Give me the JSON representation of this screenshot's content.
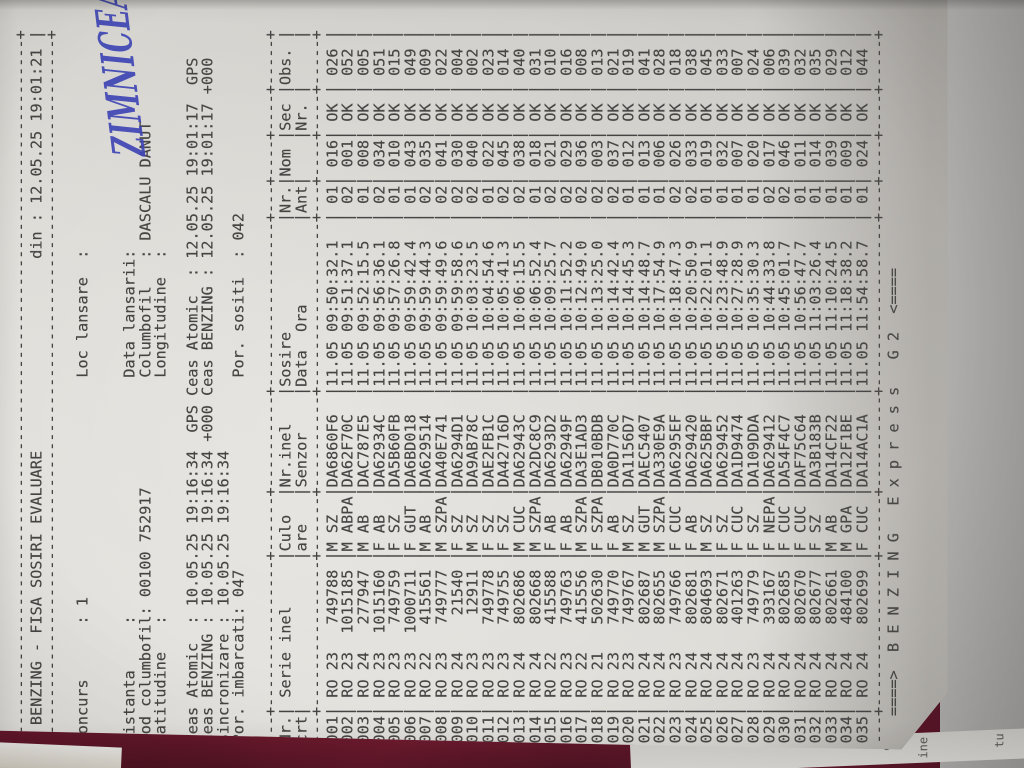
{
  "photo": {
    "table_color": "#6b1a2e",
    "paper_color": "#dddbd6",
    "ink_color": "#454443",
    "handwriting_color": "#3f46b4",
    "under_sheet_color": "#a8a7a5",
    "under_sheet_fragments": [
      "e",
      "ine",
      "tu"
    ]
  },
  "document": {
    "title": "BENZING - FISA SOSIRI EVALUARE",
    "printed_date_label": "din :",
    "printed_date": "12.05.25 19:01:21",
    "info": {
      "concurs_label": "Concurs",
      "concurs": "1",
      "loc_lansare_label": "Loc lansare",
      "loc_lansare_handwritten": "ZIMNICEA",
      "distanta_label": "Distanta",
      "distanta": "",
      "data_lansarii_label": "Data lansarii",
      "data_lansarii": "",
      "cod_columbofil_label": "Cod columbofil",
      "cod_columbofil": "00100 752917",
      "columbofil_label": "Columbofil",
      "columbofil": "DASCALU DANUT",
      "latitudine_label": "Latitudine",
      "latitudine": "",
      "longitudine_label": "Longitudine",
      "longitudine": "",
      "ceas_atomic_label": "Ceas Atomic",
      "ceas_atomic": "10.05.25 19:16:34",
      "ceas_atomic_unit": "GPS",
      "gps_ceas_atomic_label": "Ceas Atomic",
      "gps_ceas_atomic": "12.05.25 19:01:17",
      "gps_ceas_atomic_unit": "GPS",
      "ceas_benzing_label": "Ceas BENZING",
      "ceas_benzing": "10.05.25 19:16:34",
      "ceas_benzing_unit": "+000",
      "gps_ceas_benzing_label": "Ceas BENZING",
      "gps_ceas_benzing": "12.05.25 19:01:17",
      "gps_ceas_benzing_unit": "+000",
      "sincronizare_label": "Sincronizare",
      "sincronizare": "10.05.25 19:16:34",
      "por_imbarcati_label": "Por. imbarcati",
      "por_imbarcati": "047",
      "por_sositi_label": "Por. sositi",
      "por_sositi": "042"
    },
    "table": {
      "header_line1": [
        "Nr.",
        "Serie inel",
        "Culo",
        "Nr.inel",
        "Sosire",
        "Nr.",
        "Nom",
        "Sec",
        "Obs."
      ],
      "header_line2": [
        "crt",
        "",
        "are",
        "Senzor",
        "Data  Ora",
        "Ant",
        "",
        "Nr.",
        ""
      ],
      "rows": [
        [
          "001",
          "RO",
          "23",
          "749788",
          "M",
          "SZ",
          "DA6860F6",
          "11.05",
          "09:50:32.1",
          "01",
          "016",
          "OK",
          "026"
        ],
        [
          "002",
          "RO",
          "23",
          "1015185",
          "M",
          "ABPA",
          "DA62F70C",
          "11.05",
          "09:51:37.1",
          "02",
          "001",
          "OK",
          "052"
        ],
        [
          "003",
          "RO",
          "24",
          "277947",
          "M",
          "AB",
          "DAC787E5",
          "11.05",
          "09:52:15.5",
          "01",
          "008",
          "OK",
          "005"
        ],
        [
          "004",
          "RO",
          "23",
          "1015160",
          "F",
          "AB",
          "DA62934C",
          "11.05",
          "09:56:36.1",
          "02",
          "034",
          "OK",
          "051"
        ],
        [
          "005",
          "RO",
          "23",
          "749759",
          "F",
          "SZ",
          "DA5B60FB",
          "11.05",
          "09:57:26.8",
          "01",
          "010",
          "OK",
          "015"
        ],
        [
          "006",
          "RO",
          "23",
          "1000711",
          "F",
          "GUT",
          "DA6BD018",
          "11.05",
          "09:59:42.4",
          "01",
          "043",
          "OK",
          "049"
        ],
        [
          "007",
          "RO",
          "22",
          "415561",
          "M",
          "AB",
          "DA629514",
          "11.05",
          "09:59:44.3",
          "02",
          "035",
          "OK",
          "009"
        ],
        [
          "008",
          "RO",
          "23",
          "749777",
          "M",
          "SZPA",
          "DA40E741",
          "11.05",
          "09:59:49.6",
          "02",
          "041",
          "OK",
          "022"
        ],
        [
          "009",
          "RO",
          "24",
          "21540",
          "F",
          "SZ",
          "DA6294D1",
          "11.05",
          "09:59:58.6",
          "02",
          "030",
          "OK",
          "004"
        ],
        [
          "010",
          "RO",
          "23",
          "12911",
          "M",
          "SZ",
          "DA9AB78C",
          "11.05",
          "10:03:23.5",
          "02",
          "040",
          "OK",
          "002"
        ],
        [
          "011",
          "RO",
          "23",
          "749778",
          "F",
          "SZ",
          "DAE2FB1C",
          "11.05",
          "10:04:54.6",
          "01",
          "022",
          "OK",
          "023"
        ],
        [
          "012",
          "RO",
          "23",
          "749755",
          "F",
          "SZ",
          "DA42716D",
          "11.05",
          "10:05:41.3",
          "02",
          "045",
          "OK",
          "014"
        ],
        [
          "013",
          "RO",
          "24",
          "802686",
          "M",
          "CUC",
          "DA62943C",
          "11.05",
          "10:06:15.5",
          "02",
          "038",
          "OK",
          "040"
        ],
        [
          "014",
          "RO",
          "24",
          "802668",
          "M",
          "SZPA",
          "DA2DC8C9",
          "11.05",
          "10:06:52.4",
          "01",
          "018",
          "OK",
          "031"
        ],
        [
          "015",
          "RO",
          "22",
          "415588",
          "F",
          "AB",
          "DA6293D2",
          "11.05",
          "10:09:25.7",
          "02",
          "021",
          "OK",
          "010"
        ],
        [
          "016",
          "RO",
          "23",
          "749763",
          "F",
          "AB",
          "DA62949F",
          "11.05",
          "10:11:52.2",
          "02",
          "029",
          "OK",
          "016"
        ],
        [
          "017",
          "RO",
          "22",
          "415556",
          "M",
          "SZPA",
          "DA3E1AD3",
          "11.05",
          "10:12:49.0",
          "02",
          "036",
          "OK",
          "008"
        ],
        [
          "018",
          "RO",
          "21",
          "502630",
          "F",
          "SZPA",
          "DB010BDB",
          "11.05",
          "10:13:25.0",
          "02",
          "003",
          "OK",
          "013"
        ],
        [
          "019",
          "RO",
          "23",
          "749770",
          "F",
          "AB",
          "DA0D770C",
          "11.05",
          "10:14:42.4",
          "02",
          "037",
          "OK",
          "021"
        ],
        [
          "020",
          "RO",
          "23",
          "749767",
          "M",
          "SZ",
          "DA1156D7",
          "11.05",
          "10:14:45.3",
          "01",
          "012",
          "OK",
          "019"
        ],
        [
          "021",
          "RO",
          "24",
          "802687",
          "M",
          "GUT",
          "DAEC5407",
          "11.05",
          "10:14:48.7",
          "01",
          "013",
          "OK",
          "041"
        ],
        [
          "022",
          "RO",
          "24",
          "802655",
          "M",
          "SZPA",
          "DA330E9A",
          "11.05",
          "10:17:54.9",
          "01",
          "006",
          "OK",
          "028"
        ],
        [
          "023",
          "RO",
          "23",
          "749766",
          "F",
          "CUC",
          "DA6295EF",
          "11.05",
          "10:18:47.3",
          "02",
          "026",
          "OK",
          "018"
        ],
        [
          "024",
          "RO",
          "24",
          "802681",
          "F",
          "AB",
          "DA629420",
          "11.05",
          "10:20:50.9",
          "02",
          "033",
          "OK",
          "038"
        ],
        [
          "025",
          "RO",
          "24",
          "804693",
          "M",
          "SZ",
          "DA625BBF",
          "11.05",
          "10:22:01.1",
          "01",
          "019",
          "OK",
          "045"
        ],
        [
          "026",
          "RO",
          "24",
          "802671",
          "F",
          "SZ",
          "DA629452",
          "11.05",
          "10:23:48.9",
          "01",
          "032",
          "OK",
          "033"
        ],
        [
          "027",
          "RO",
          "24",
          "401263",
          "F",
          "CUC",
          "DA1D9474",
          "11.05",
          "10:27:28.9",
          "01",
          "007",
          "OK",
          "007"
        ],
        [
          "028",
          "RO",
          "23",
          "749779",
          "F",
          "SZ",
          "DA109DDA",
          "11.05",
          "10:35:30.3",
          "01",
          "020",
          "OK",
          "024"
        ],
        [
          "029",
          "RO",
          "24",
          "393167",
          "F",
          "NEPA",
          "DA629412",
          "11.05",
          "10:44:33.8",
          "02",
          "017",
          "OK",
          "006"
        ],
        [
          "030",
          "RO",
          "24",
          "802685",
          "F",
          "CUC",
          "DA54F4C7",
          "11.05",
          "10:45:01.7",
          "02",
          "046",
          "OK",
          "039"
        ],
        [
          "031",
          "RO",
          "24",
          "802670",
          "F",
          "CUC",
          "DAF75C64",
          "11.05",
          "10:56:47.7",
          "01",
          "011",
          "OK",
          "032"
        ],
        [
          "032",
          "RO",
          "24",
          "802677",
          "F",
          "SZ",
          "DA3B183B",
          "11.05",
          "11:03:26.4",
          "01",
          "014",
          "OK",
          "035"
        ],
        [
          "033",
          "RO",
          "24",
          "802661",
          "M",
          "AB",
          "DA14CF22",
          "11.05",
          "11:10:24.5",
          "01",
          "039",
          "OK",
          "029"
        ],
        [
          "034",
          "RO",
          "24",
          "484100",
          "M",
          "GPA",
          "DA12F1BE",
          "11.05",
          "11:18:38.2",
          "01",
          "009",
          "OK",
          "012"
        ],
        [
          "035",
          "RO",
          "24",
          "802699",
          "F",
          "CUC",
          "DA14AC1A",
          "11.05",
          "11:54:58.7",
          "01",
          "024",
          "OK",
          "044"
        ]
      ]
    },
    "footer": "====>  B E N Z I N G   E x p r e s s   G 2  <===="
  }
}
